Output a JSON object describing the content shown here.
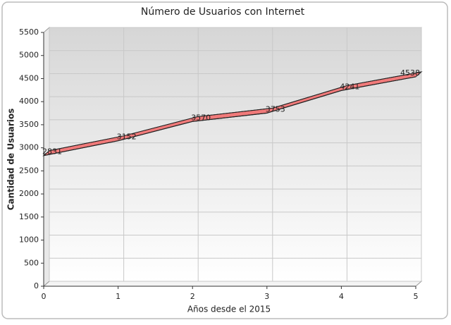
{
  "chart_data": {
    "type": "line",
    "title": "Número de Usuarios con Internet",
    "x_label": "Años desde el 2015",
    "y_label": "Cantidad de Usuarios",
    "x": [
      0,
      1,
      2,
      3,
      4,
      5
    ],
    "series": [
      {
        "name": "Usuarios",
        "color": "#f07a7a",
        "values": [
          2831,
          3152,
          3570,
          3753,
          4241,
          4538
        ]
      }
    ],
    "xlim": [
      0,
      5
    ],
    "xticks": [
      0,
      1,
      2,
      3,
      4,
      5
    ],
    "ylim": [
      0,
      5500
    ],
    "yticks": [
      0,
      500,
      1000,
      1500,
      2000,
      2500,
      3000,
      3500,
      4000,
      4500,
      5000,
      5500
    ],
    "grid": true
  }
}
